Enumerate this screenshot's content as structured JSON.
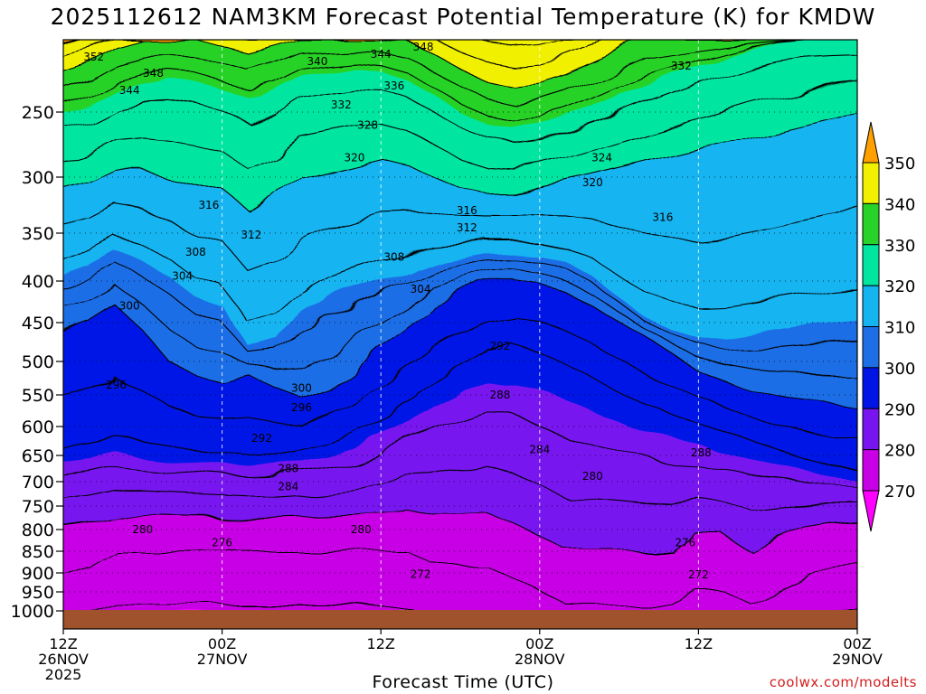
{
  "page": {
    "title": "2025112612 NAM3KM Forecast Potential Temperature (K) for KMDW",
    "credit": "coolwx.com/modelts"
  },
  "chart_data": {
    "type": "heatmap",
    "title": "2025112612 NAM3KM Forecast Potential Temperature (K) for KMDW",
    "xlabel": "Forecast Time (UTC)",
    "x_range_hours": [
      0,
      60
    ],
    "y_range_hPa": [
      1000,
      200
    ],
    "y_ticks": [
      250,
      300,
      350,
      400,
      450,
      500,
      550,
      600,
      650,
      700,
      750,
      800,
      850,
      900,
      950,
      1000
    ],
    "x_ticks": [
      {
        "hour": 0,
        "lines": [
          "12Z",
          "26NOV",
          "2025"
        ]
      },
      {
        "hour": 12,
        "lines": [
          "00Z",
          "27NOV"
        ]
      },
      {
        "hour": 24,
        "lines": [
          "12Z"
        ]
      },
      {
        "hour": 36,
        "lines": [
          "00Z",
          "28NOV"
        ]
      },
      {
        "hour": 48,
        "lines": [
          "12Z"
        ]
      },
      {
        "hour": 60,
        "lines": [
          "00Z",
          "29NOV"
        ]
      }
    ],
    "colorbar": {
      "levels": [
        270,
        280,
        290,
        300,
        310,
        320,
        330,
        340,
        350
      ],
      "labels": [
        "270",
        "280",
        "290",
        "300",
        "310",
        "320",
        "330",
        "340",
        "350"
      ],
      "colors": [
        "#ff00ff",
        "#c800e6",
        "#7814f0",
        "#0014e6",
        "#1e6ee6",
        "#14b4f0",
        "#00e6a0",
        "#28d228",
        "#f0f000",
        "#ffa000"
      ]
    },
    "contour_interval_K": 4,
    "series": [
      {
        "hours": [
          0,
          2,
          4,
          6,
          8,
          10,
          12,
          14,
          16,
          18,
          20,
          22,
          24,
          26,
          28,
          30,
          32,
          34,
          36,
          38,
          40,
          42,
          44,
          46,
          48,
          50,
          52,
          54,
          56,
          58,
          60
        ]
      },
      {
        "theta_950hPa": [
          275,
          274,
          273,
          273,
          273,
          273,
          273,
          273,
          273,
          273,
          273,
          273,
          273,
          273,
          274,
          274,
          274,
          275,
          276,
          277,
          277,
          277,
          277,
          277,
          276,
          276,
          277,
          276,
          275,
          274,
          273
        ]
      },
      {
        "p_theta292_hPa": [
          640,
          630,
          620,
          628,
          635,
          640,
          645,
          650,
          648,
          640,
          630,
          615,
          590,
          560,
          530,
          505,
          485,
          480,
          490,
          505,
          525,
          545,
          565,
          580,
          595,
          610,
          625,
          640,
          655,
          668,
          680
        ]
      },
      {
        "p_theta300_hPa": [
          470,
          450,
          430,
          460,
          500,
          520,
          530,
          520,
          540,
          555,
          540,
          510,
          480,
          455,
          430,
          415,
          405,
          400,
          405,
          415,
          430,
          450,
          470,
          490,
          515,
          530,
          545,
          555,
          560,
          565,
          570
        ]
      },
      {
        "p_theta310_hPa": [
          395,
          385,
          370,
          380,
          395,
          420,
          430,
          480,
          470,
          440,
          420,
          410,
          400,
          390,
          380,
          375,
          370,
          370,
          372,
          380,
          395,
          420,
          445,
          460,
          470,
          470,
          465,
          460,
          455,
          450,
          445
        ]
      },
      {
        "p_theta320_hPa": [
          315,
          305,
          295,
          295,
          300,
          305,
          310,
          330,
          320,
          300,
          295,
          290,
          285,
          290,
          300,
          310,
          315,
          315,
          310,
          305,
          300,
          295,
          290,
          285,
          280,
          275,
          270,
          265,
          260,
          255,
          250
        ]
      },
      {
        "p_theta330_hPa": [
          255,
          245,
          235,
          230,
          228,
          230,
          235,
          240,
          235,
          225,
          222,
          220,
          222,
          228,
          238,
          250,
          258,
          262,
          260,
          255,
          248,
          240,
          232,
          225,
          218,
          212,
          206,
          202,
          200,
          200,
          200
        ]
      },
      {
        "p_theta340_hPa": [
          225,
          215,
          205,
          200,
          200,
          200,
          205,
          210,
          205,
          200,
          200,
          200,
          200,
          202,
          210,
          220,
          228,
          232,
          230,
          224,
          216,
          208,
          200,
          200,
          200,
          200,
          200,
          200,
          200,
          200,
          200
        ]
      }
    ],
    "contour_labels": [
      {
        "hour": 2.3,
        "hPa": 212,
        "label": "352"
      },
      {
        "hour": 6.8,
        "hPa": 223,
        "label": "348"
      },
      {
        "hour": 5.0,
        "hPa": 235,
        "label": "344"
      },
      {
        "hour": 19.2,
        "hPa": 215,
        "label": "340"
      },
      {
        "hour": 24.0,
        "hPa": 210,
        "label": "344"
      },
      {
        "hour": 27.2,
        "hPa": 205,
        "label": "348"
      },
      {
        "hour": 25.0,
        "hPa": 232,
        "label": "336"
      },
      {
        "hour": 21.0,
        "hPa": 245,
        "label": "332"
      },
      {
        "hour": 23.0,
        "hPa": 260,
        "label": "328"
      },
      {
        "hour": 46.7,
        "hPa": 218,
        "label": "332"
      },
      {
        "hour": 40.7,
        "hPa": 285,
        "label": "324"
      },
      {
        "hour": 22.0,
        "hPa": 285,
        "label": "320"
      },
      {
        "hour": 40.0,
        "hPa": 305,
        "label": "320"
      },
      {
        "hour": 11.0,
        "hPa": 325,
        "label": "316"
      },
      {
        "hour": 30.5,
        "hPa": 330,
        "label": "316"
      },
      {
        "hour": 45.3,
        "hPa": 336,
        "label": "316"
      },
      {
        "hour": 14.2,
        "hPa": 352,
        "label": "312"
      },
      {
        "hour": 30.5,
        "hPa": 345,
        "label": "312"
      },
      {
        "hour": 10.0,
        "hPa": 370,
        "label": "308"
      },
      {
        "hour": 25.0,
        "hPa": 375,
        "label": "308"
      },
      {
        "hour": 9.0,
        "hPa": 395,
        "label": "304"
      },
      {
        "hour": 27.0,
        "hPa": 410,
        "label": "304"
      },
      {
        "hour": 5.0,
        "hPa": 430,
        "label": "300"
      },
      {
        "hour": 18.0,
        "hPa": 540,
        "label": "300"
      },
      {
        "hour": 4.0,
        "hPa": 535,
        "label": "296"
      },
      {
        "hour": 18.0,
        "hPa": 570,
        "label": "296"
      },
      {
        "hour": 15.0,
        "hPa": 620,
        "label": "292"
      },
      {
        "hour": 33.0,
        "hPa": 480,
        "label": "292"
      },
      {
        "hour": 33.0,
        "hPa": 550,
        "label": "288"
      },
      {
        "hour": 17.0,
        "hPa": 675,
        "label": "288"
      },
      {
        "hour": 48.2,
        "hPa": 645,
        "label": "288"
      },
      {
        "hour": 17.0,
        "hPa": 710,
        "label": "284"
      },
      {
        "hour": 36.0,
        "hPa": 640,
        "label": "284"
      },
      {
        "hour": 40.0,
        "hPa": 690,
        "label": "280"
      },
      {
        "hour": 6.0,
        "hPa": 800,
        "label": "280"
      },
      {
        "hour": 22.5,
        "hPa": 800,
        "label": "280"
      },
      {
        "hour": 12.0,
        "hPa": 830,
        "label": "276"
      },
      {
        "hour": 47.0,
        "hPa": 830,
        "label": "276"
      },
      {
        "hour": 27.0,
        "hPa": 903,
        "label": "272"
      },
      {
        "hour": 48.0,
        "hPa": 905,
        "label": "272"
      }
    ]
  }
}
